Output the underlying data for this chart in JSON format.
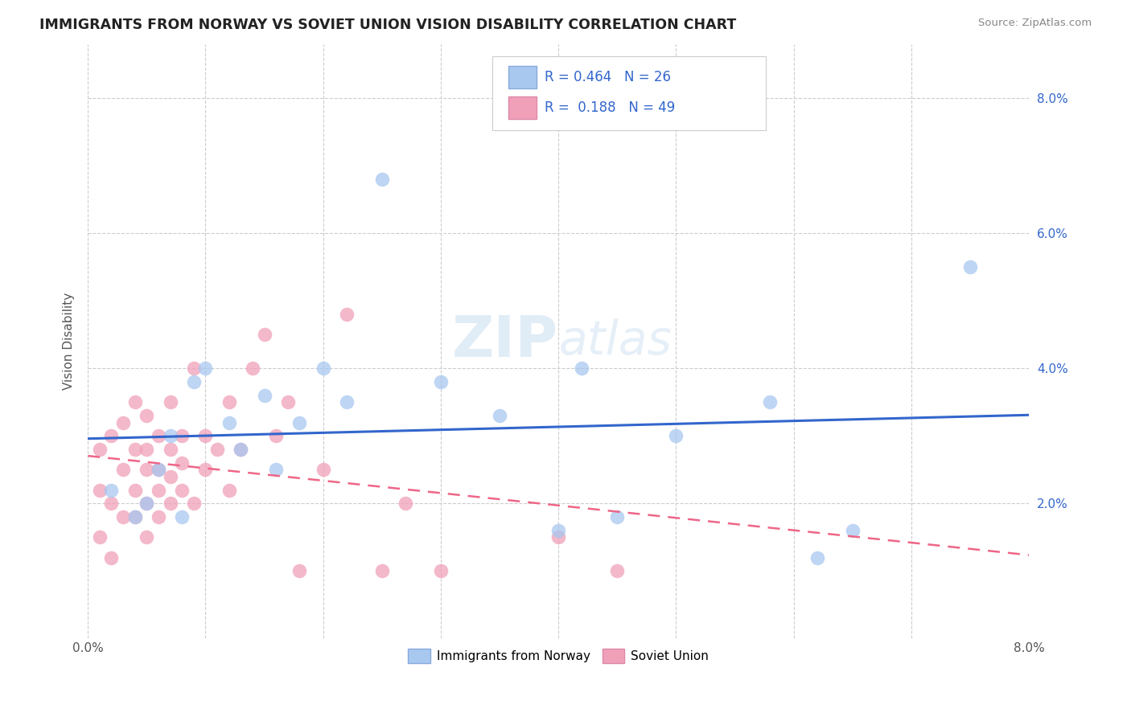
{
  "title": "IMMIGRANTS FROM NORWAY VS SOVIET UNION VISION DISABILITY CORRELATION CHART",
  "source": "Source: ZipAtlas.com",
  "ylabel": "Vision Disability",
  "xlim": [
    0.0,
    0.08
  ],
  "ylim": [
    0.0,
    0.088
  ],
  "xticks": [
    0.0,
    0.01,
    0.02,
    0.03,
    0.04,
    0.05,
    0.06,
    0.07,
    0.08
  ],
  "xtick_labels_show": {
    "0.0": "0.0%",
    "0.08": "8.0%"
  },
  "ytick_positions_right": [
    0.02,
    0.04,
    0.06,
    0.08
  ],
  "ytick_labels_right": [
    "2.0%",
    "4.0%",
    "6.0%",
    "8.0%"
  ],
  "norway_R": 0.464,
  "norway_N": 26,
  "soviet_R": 0.188,
  "soviet_N": 49,
  "norway_color": "#a8c8f0",
  "norway_edge_color": "#88aadd",
  "soviet_color": "#f0a0b8",
  "soviet_edge_color": "#dd88aa",
  "norway_line_color": "#3366cc",
  "soviet_line_color": "#ee6688",
  "soviet_dash_color": "#ddaaaa",
  "legend_text_color": "#3366cc",
  "watermark_color": "#c8ddf0",
  "norway_scatter_x": [
    0.002,
    0.004,
    0.005,
    0.006,
    0.007,
    0.008,
    0.009,
    0.01,
    0.012,
    0.013,
    0.015,
    0.016,
    0.018,
    0.02,
    0.022,
    0.025,
    0.03,
    0.035,
    0.04,
    0.042,
    0.045,
    0.05,
    0.058,
    0.062,
    0.065,
    0.075
  ],
  "norway_scatter_y": [
    0.022,
    0.018,
    0.02,
    0.025,
    0.03,
    0.018,
    0.038,
    0.04,
    0.032,
    0.028,
    0.036,
    0.025,
    0.032,
    0.04,
    0.035,
    0.068,
    0.038,
    0.033,
    0.016,
    0.04,
    0.018,
    0.03,
    0.035,
    0.012,
    0.016,
    0.055
  ],
  "soviet_scatter_x": [
    0.001,
    0.001,
    0.001,
    0.002,
    0.002,
    0.002,
    0.003,
    0.003,
    0.003,
    0.004,
    0.004,
    0.004,
    0.004,
    0.005,
    0.005,
    0.005,
    0.005,
    0.005,
    0.006,
    0.006,
    0.006,
    0.006,
    0.007,
    0.007,
    0.007,
    0.007,
    0.008,
    0.008,
    0.008,
    0.009,
    0.009,
    0.01,
    0.01,
    0.011,
    0.012,
    0.012,
    0.013,
    0.014,
    0.015,
    0.016,
    0.017,
    0.018,
    0.02,
    0.022,
    0.025,
    0.027,
    0.03,
    0.04,
    0.045
  ],
  "soviet_scatter_y": [
    0.015,
    0.022,
    0.028,
    0.012,
    0.02,
    0.03,
    0.018,
    0.025,
    0.032,
    0.018,
    0.022,
    0.028,
    0.035,
    0.015,
    0.02,
    0.025,
    0.028,
    0.033,
    0.018,
    0.022,
    0.025,
    0.03,
    0.02,
    0.024,
    0.028,
    0.035,
    0.022,
    0.026,
    0.03,
    0.02,
    0.04,
    0.025,
    0.03,
    0.028,
    0.022,
    0.035,
    0.028,
    0.04,
    0.045,
    0.03,
    0.035,
    0.01,
    0.025,
    0.048,
    0.01,
    0.02,
    0.01,
    0.015,
    0.01
  ],
  "grid_color": "#cccccc",
  "grid_alpha": 0.7
}
